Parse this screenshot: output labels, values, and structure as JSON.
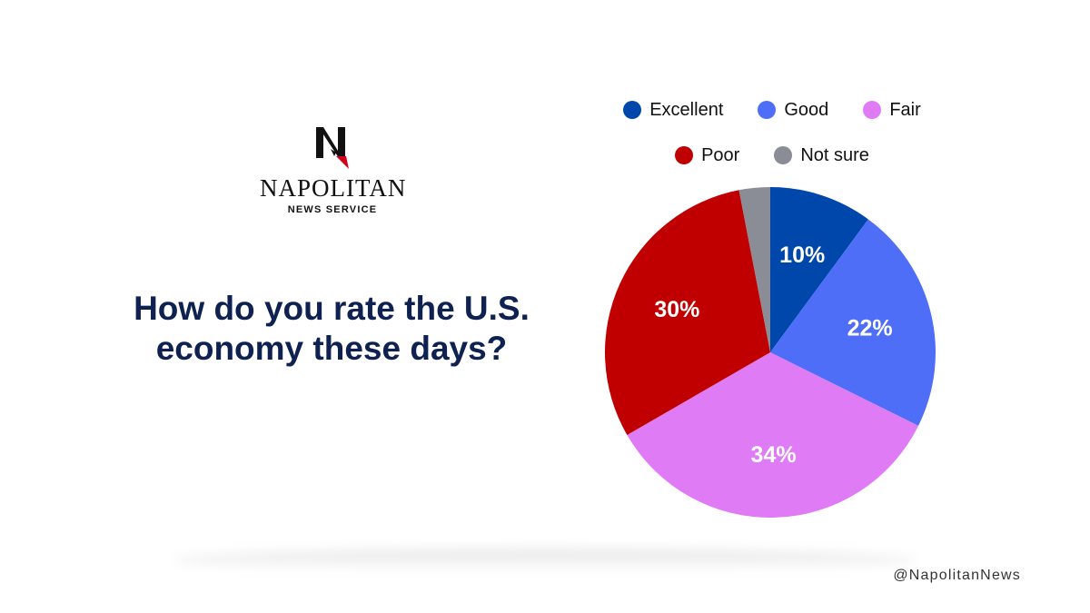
{
  "brand": {
    "name": "NAPOLITAN",
    "subtitle": "NEWS SERVICE",
    "logo_letter": "N"
  },
  "question": "How do you rate the U.S. economy these days?",
  "handle": "@NapolitanNews",
  "chart_data": {
    "type": "pie",
    "title": "How do you rate the U.S. economy these days?",
    "legend_position": "top",
    "slices": [
      {
        "label": "Excellent",
        "value": 10,
        "display": "10%",
        "color": "#0047ab"
      },
      {
        "label": "Good",
        "value": 22,
        "display": "22%",
        "color": "#4f6ef7"
      },
      {
        "label": "Fair",
        "value": 34,
        "display": "34%",
        "color": "#df7bf5"
      },
      {
        "label": "Poor",
        "value": 30,
        "display": "30%",
        "color": "#c00000"
      },
      {
        "label": "Not sure",
        "value": 3,
        "display": "",
        "color": "#8a8d95"
      }
    ]
  }
}
